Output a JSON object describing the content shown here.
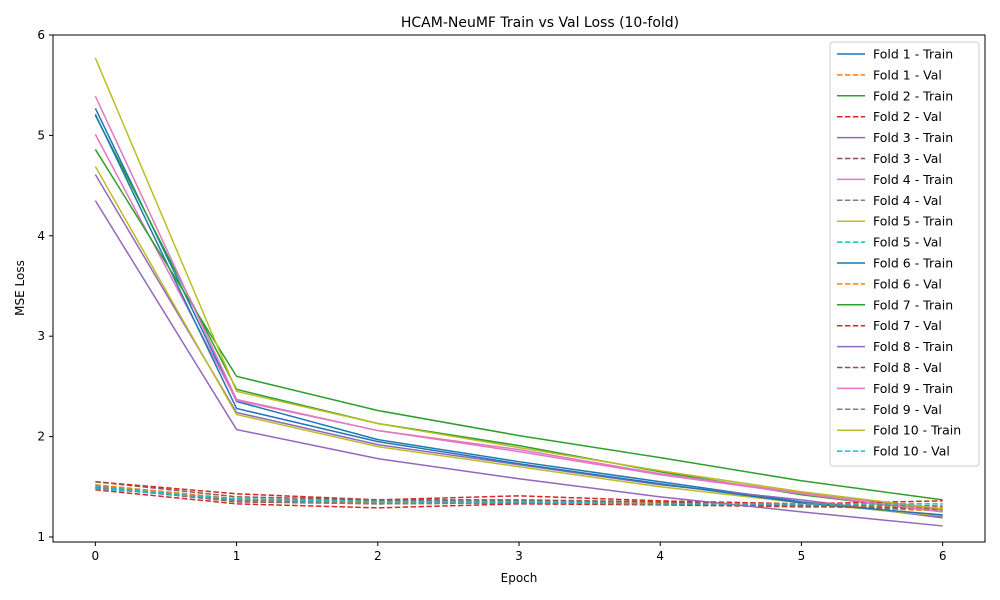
{
  "chart_data": {
    "type": "line",
    "title": "HCAM-NeuMF Train vs Val Loss (10-fold)",
    "xlabel": "Epoch",
    "ylabel": "MSE Loss",
    "xlim": [
      -0.3,
      6.3
    ],
    "ylim": [
      0.95,
      6.0
    ],
    "xticks": [
      0,
      1,
      2,
      3,
      4,
      5,
      6
    ],
    "yticks": [
      1,
      2,
      3,
      4,
      5,
      6
    ],
    "x": [
      0,
      1,
      2,
      3,
      4,
      5,
      6
    ],
    "grid": false,
    "legend_position": "top-right",
    "series": [
      {
        "name": "Fold 1 - Train",
        "color": "#1f77b4",
        "style": "solid",
        "values": [
          5.27,
          2.35,
          1.97,
          1.75,
          1.55,
          1.35,
          1.2
        ]
      },
      {
        "name": "Fold 1 - Val",
        "color": "#ff7f0e",
        "style": "dashed",
        "values": [
          1.49,
          1.36,
          1.34,
          1.34,
          1.33,
          1.31,
          1.26
        ]
      },
      {
        "name": "Fold 2 - Train",
        "color": "#2ca02c",
        "style": "solid",
        "values": [
          5.2,
          2.47,
          2.13,
          1.91,
          1.65,
          1.42,
          1.25
        ]
      },
      {
        "name": "Fold 2 - Val",
        "color": "#d62728",
        "style": "dashed",
        "values": [
          1.47,
          1.33,
          1.29,
          1.33,
          1.32,
          1.3,
          1.3
        ]
      },
      {
        "name": "Fold 3 - Train",
        "color": "#9467bd",
        "style": "solid",
        "values": [
          4.61,
          2.24,
          1.92,
          1.72,
          1.52,
          1.37,
          1.19
        ]
      },
      {
        "name": "Fold 3 - Val",
        "color": "#8c564b",
        "style": "dashed",
        "values": [
          1.5,
          1.35,
          1.33,
          1.34,
          1.33,
          1.31,
          1.28
        ]
      },
      {
        "name": "Fold 4 - Train",
        "color": "#e377c2",
        "style": "solid",
        "values": [
          5.01,
          2.36,
          2.06,
          1.87,
          1.63,
          1.44,
          1.27
        ]
      },
      {
        "name": "Fold 4 - Val",
        "color": "#7f7f7f",
        "style": "dashed",
        "values": [
          1.51,
          1.37,
          1.35,
          1.35,
          1.34,
          1.31,
          1.27
        ]
      },
      {
        "name": "Fold 5 - Train",
        "color": "#bcbd22",
        "style": "solid",
        "values": [
          4.69,
          2.22,
          1.9,
          1.7,
          1.5,
          1.34,
          1.21
        ]
      },
      {
        "name": "Fold 5 - Val",
        "color": "#17becf",
        "style": "dashed",
        "values": [
          1.5,
          1.38,
          1.36,
          1.36,
          1.34,
          1.33,
          1.29
        ]
      },
      {
        "name": "Fold 6 - Train",
        "color": "#1f77b4",
        "style": "solid",
        "values": [
          5.21,
          2.28,
          1.95,
          1.73,
          1.53,
          1.34,
          1.22
        ]
      },
      {
        "name": "Fold 6 - Val",
        "color": "#ff7f0e",
        "style": "dashed",
        "values": [
          1.52,
          1.38,
          1.35,
          1.35,
          1.34,
          1.32,
          1.3
        ]
      },
      {
        "name": "Fold 7 - Train",
        "color": "#2ca02c",
        "style": "solid",
        "values": [
          4.86,
          2.6,
          2.26,
          2.01,
          1.79,
          1.56,
          1.37
        ]
      },
      {
        "name": "Fold 7 - Val",
        "color": "#d62728",
        "style": "dashed",
        "values": [
          1.55,
          1.43,
          1.37,
          1.41,
          1.36,
          1.33,
          1.36
        ]
      },
      {
        "name": "Fold 8 - Train",
        "color": "#9467bd",
        "style": "solid",
        "values": [
          4.35,
          2.07,
          1.78,
          1.58,
          1.4,
          1.25,
          1.11
        ]
      },
      {
        "name": "Fold 8 - Val",
        "color": "#8c564b",
        "style": "dashed",
        "values": [
          1.55,
          1.4,
          1.37,
          1.37,
          1.35,
          1.31,
          1.28
        ]
      },
      {
        "name": "Fold 9 - Train",
        "color": "#e377c2",
        "style": "solid",
        "values": [
          5.39,
          2.37,
          2.06,
          1.85,
          1.62,
          1.43,
          1.25
        ]
      },
      {
        "name": "Fold 9 - Val",
        "color": "#7f7f7f",
        "style": "dashed",
        "values": [
          1.49,
          1.36,
          1.33,
          1.34,
          1.33,
          1.32,
          1.31
        ]
      },
      {
        "name": "Fold 10 - Train",
        "color": "#bcbd22",
        "style": "solid",
        "values": [
          5.77,
          2.45,
          2.13,
          1.89,
          1.66,
          1.45,
          1.28
        ]
      },
      {
        "name": "Fold 10 - Val",
        "color": "#17becf",
        "style": "dashed",
        "values": [
          1.48,
          1.38,
          1.35,
          1.35,
          1.33,
          1.33,
          1.33
        ]
      }
    ]
  }
}
